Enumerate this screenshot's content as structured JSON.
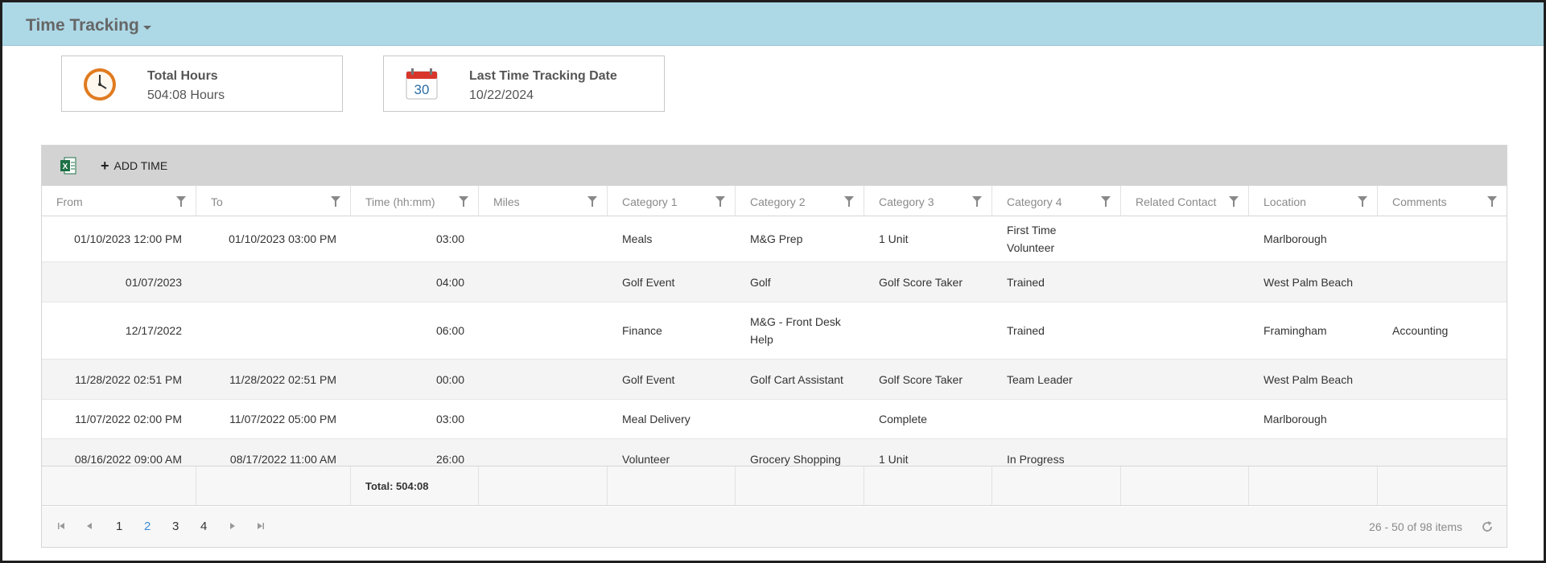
{
  "header": {
    "title": "Time Tracking"
  },
  "cards": {
    "total_hours": {
      "label": "Total Hours",
      "value": "504:08 Hours",
      "icon": "clock-icon"
    },
    "last_date": {
      "label": "Last Time Tracking Date",
      "value": "10/22/2024",
      "icon": "calendar-icon",
      "icon_text": "30"
    }
  },
  "toolbar": {
    "add_label": "ADD TIME",
    "export_icon": "excel-icon"
  },
  "columns": [
    "From",
    "To",
    "Time (hh:mm)",
    "Miles",
    "Category 1",
    "Category 2",
    "Category 3",
    "Category 4",
    "Related Contact",
    "Location",
    "Comments"
  ],
  "rows": [
    [
      "01/10/2023 12:00 PM",
      "01/10/2023 03:00 PM",
      "03:00",
      "",
      "Meals",
      "M&G Prep",
      "1 Unit",
      "First Time Volunteer",
      "",
      "Marlborough",
      ""
    ],
    [
      "01/07/2023",
      "",
      "04:00",
      "",
      "Golf Event",
      "Golf",
      "Golf Score Taker",
      "Trained",
      "",
      "West Palm Beach",
      ""
    ],
    [
      "12/17/2022",
      "",
      "06:00",
      "",
      "Finance",
      "M&G - Front Desk Help",
      "",
      "Trained",
      "",
      "Framingham",
      "Accounting"
    ],
    [
      "11/28/2022 02:51 PM",
      "11/28/2022 02:51 PM",
      "00:00",
      "",
      "Golf Event",
      "Golf Cart Assistant",
      "Golf Score Taker",
      "Team Leader",
      "",
      "West Palm Beach",
      ""
    ],
    [
      "11/07/2022 02:00 PM",
      "11/07/2022 05:00 PM",
      "03:00",
      "",
      "Meal Delivery",
      "",
      "Complete",
      "",
      "",
      "Marlborough",
      ""
    ],
    [
      "08/16/2022 09:00 AM",
      "08/17/2022 11:00 AM",
      "26:00",
      "",
      "Volunteer",
      "Grocery Shopping",
      "1 Unit",
      "In Progress",
      "",
      "",
      ""
    ]
  ],
  "footer": {
    "total": "Total: 504:08"
  },
  "pager": {
    "pages": [
      "1",
      "2",
      "3",
      "4"
    ],
    "current_page": "2",
    "info": "26 - 50 of 98 items"
  },
  "colors": {
    "header_bg": "#add8e6",
    "toolbar_bg": "#d3d3d3",
    "active_page": "#3b8bd8"
  }
}
